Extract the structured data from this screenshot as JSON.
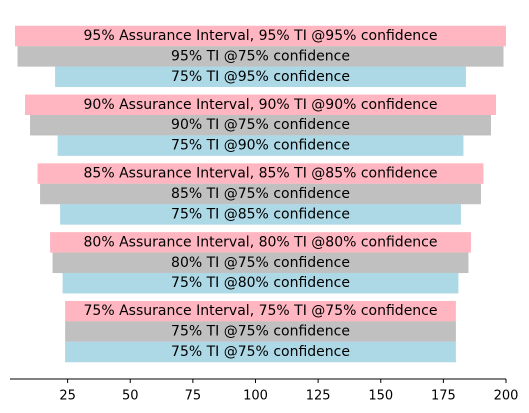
{
  "chart_data": {
    "type": "bar",
    "orientation": "horizontal",
    "title": "",
    "xlabel": "",
    "ylabel": "",
    "xlim": [
      2,
      200
    ],
    "xticks": [
      25,
      50,
      75,
      100,
      125,
      150,
      175,
      200
    ],
    "xtick_labels": [
      "25",
      "50",
      "75",
      "100",
      "125",
      "150",
      "175",
      "200"
    ],
    "grid": false,
    "legend": "none",
    "colors": {
      "assurance": "#ffb6c1",
      "ti75": "#c0c0c0",
      "ti_low": "#add8e6"
    },
    "groups": [
      {
        "bars": [
          {
            "label": "95% Assurance Interval, 95% TI @95% confidence",
            "start": 4,
            "end": 200,
            "kind": "assurance"
          },
          {
            "label": "95% TI @75% confidence",
            "start": 5,
            "end": 199,
            "kind": "ti75"
          },
          {
            "label": "75% TI @95% confidence",
            "start": 20,
            "end": 184,
            "kind": "ti_low"
          }
        ]
      },
      {
        "bars": [
          {
            "label": "90% Assurance Interval, 90% TI @90% confidence",
            "start": 8,
            "end": 196,
            "kind": "assurance"
          },
          {
            "label": "90% TI @75% confidence",
            "start": 10,
            "end": 194,
            "kind": "ti75"
          },
          {
            "label": "75% TI @90% confidence",
            "start": 21,
            "end": 183,
            "kind": "ti_low"
          }
        ]
      },
      {
        "bars": [
          {
            "label": "85% Assurance Interval, 85% TI @85% confidence",
            "start": 13,
            "end": 191,
            "kind": "assurance"
          },
          {
            "label": "85% TI @75% confidence",
            "start": 14,
            "end": 190,
            "kind": "ti75"
          },
          {
            "label": "75% TI @85% confidence",
            "start": 22,
            "end": 182,
            "kind": "ti_low"
          }
        ]
      },
      {
        "bars": [
          {
            "label": "80% Assurance Interval, 80% TI @80% confidence",
            "start": 18,
            "end": 186,
            "kind": "assurance"
          },
          {
            "label": "80% TI @75% confidence",
            "start": 19,
            "end": 185,
            "kind": "ti75"
          },
          {
            "label": "75% TI @80% confidence",
            "start": 23,
            "end": 181,
            "kind": "ti_low"
          }
        ]
      },
      {
        "bars": [
          {
            "label": "75% Assurance Interval, 75% TI @75% confidence",
            "start": 24,
            "end": 180,
            "kind": "assurance"
          },
          {
            "label": "75% TI @75% confidence",
            "start": 24,
            "end": 180,
            "kind": "ti75"
          },
          {
            "label": "75% TI @75% confidence",
            "start": 24,
            "end": 180,
            "kind": "ti_low"
          }
        ]
      }
    ]
  }
}
